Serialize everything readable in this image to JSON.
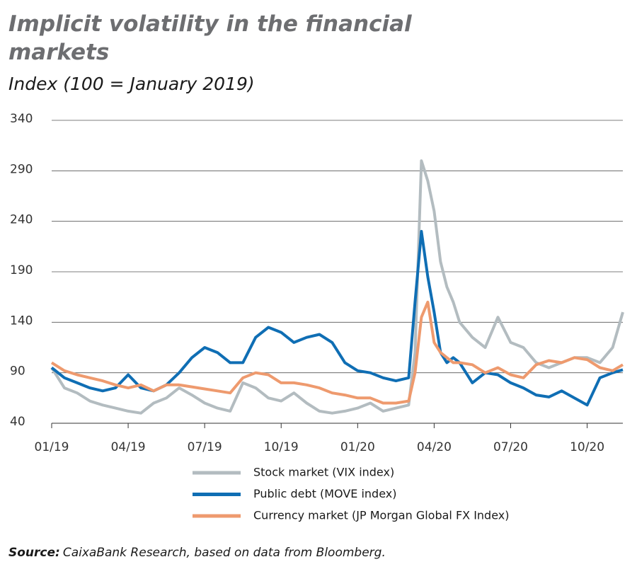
{
  "chart_data": {
    "type": "line",
    "title": "Implicit volatility in the financial",
    "title_line2": "markets",
    "subtitle": "Index (100 = January 2019)",
    "source_label": "Source:",
    "source": "CaixaBank Research, based on data from Bloomberg.",
    "x": [
      0,
      0.5,
      1,
      1.5,
      2,
      2.5,
      3,
      3.5,
      4,
      4.5,
      5,
      5.5,
      6,
      6.5,
      7,
      7.5,
      8,
      8.5,
      9,
      9.5,
      10,
      10.5,
      11,
      11.5,
      12,
      12.5,
      13,
      13.5,
      14,
      14.25,
      14.5,
      14.75,
      15,
      15.25,
      15.5,
      15.75,
      16,
      16.5,
      17,
      17.5,
      18,
      18.5,
      19,
      19.5,
      20,
      20.5,
      21,
      21.5,
      22,
      22.4
    ],
    "xlim": [
      0,
      22.4
    ],
    "xticks": [
      {
        "value": 0,
        "label": "01/19"
      },
      {
        "value": 3,
        "label": "04/19"
      },
      {
        "value": 6,
        "label": "07/19"
      },
      {
        "value": 9,
        "label": "10/19"
      },
      {
        "value": 12,
        "label": "01/20"
      },
      {
        "value": 15,
        "label": "04/20"
      },
      {
        "value": 18,
        "label": "07/20"
      },
      {
        "value": 21,
        "label": "10/20"
      }
    ],
    "ylim": [
      40,
      340
    ],
    "yticks": [
      40,
      90,
      140,
      190,
      240,
      290,
      340
    ],
    "grid": true,
    "series": [
      {
        "name": "Stock market (VIX index)",
        "color": "#b3bcc0",
        "values": [
          95,
          75,
          70,
          62,
          58,
          55,
          52,
          50,
          60,
          65,
          75,
          68,
          60,
          55,
          52,
          80,
          75,
          65,
          62,
          70,
          60,
          52,
          50,
          52,
          55,
          60,
          52,
          55,
          58,
          110,
          300,
          280,
          250,
          200,
          175,
          160,
          140,
          125,
          115,
          145,
          120,
          115,
          100,
          95,
          100,
          105,
          105,
          100,
          115,
          150
        ]
      },
      {
        "name": "Public debt (MOVE index)",
        "color": "#0f6eb4",
        "values": [
          95,
          85,
          80,
          75,
          72,
          75,
          88,
          75,
          72,
          78,
          90,
          105,
          115,
          110,
          100,
          100,
          125,
          135,
          130,
          120,
          125,
          128,
          120,
          100,
          92,
          90,
          85,
          82,
          85,
          160,
          230,
          185,
          150,
          110,
          100,
          105,
          100,
          80,
          90,
          88,
          80,
          75,
          68,
          66,
          72,
          65,
          58,
          85,
          90,
          93
        ]
      },
      {
        "name": "Currency market (JP Morgan Global FX Index)",
        "color": "#ee9a6e",
        "values": [
          100,
          92,
          88,
          85,
          82,
          78,
          75,
          78,
          72,
          78,
          78,
          76,
          74,
          72,
          70,
          85,
          90,
          88,
          80,
          80,
          78,
          75,
          70,
          68,
          65,
          65,
          60,
          60,
          62,
          90,
          145,
          160,
          120,
          110,
          105,
          100,
          100,
          98,
          90,
          95,
          88,
          85,
          98,
          102,
          100,
          105,
          103,
          95,
          92,
          98
        ]
      }
    ]
  }
}
